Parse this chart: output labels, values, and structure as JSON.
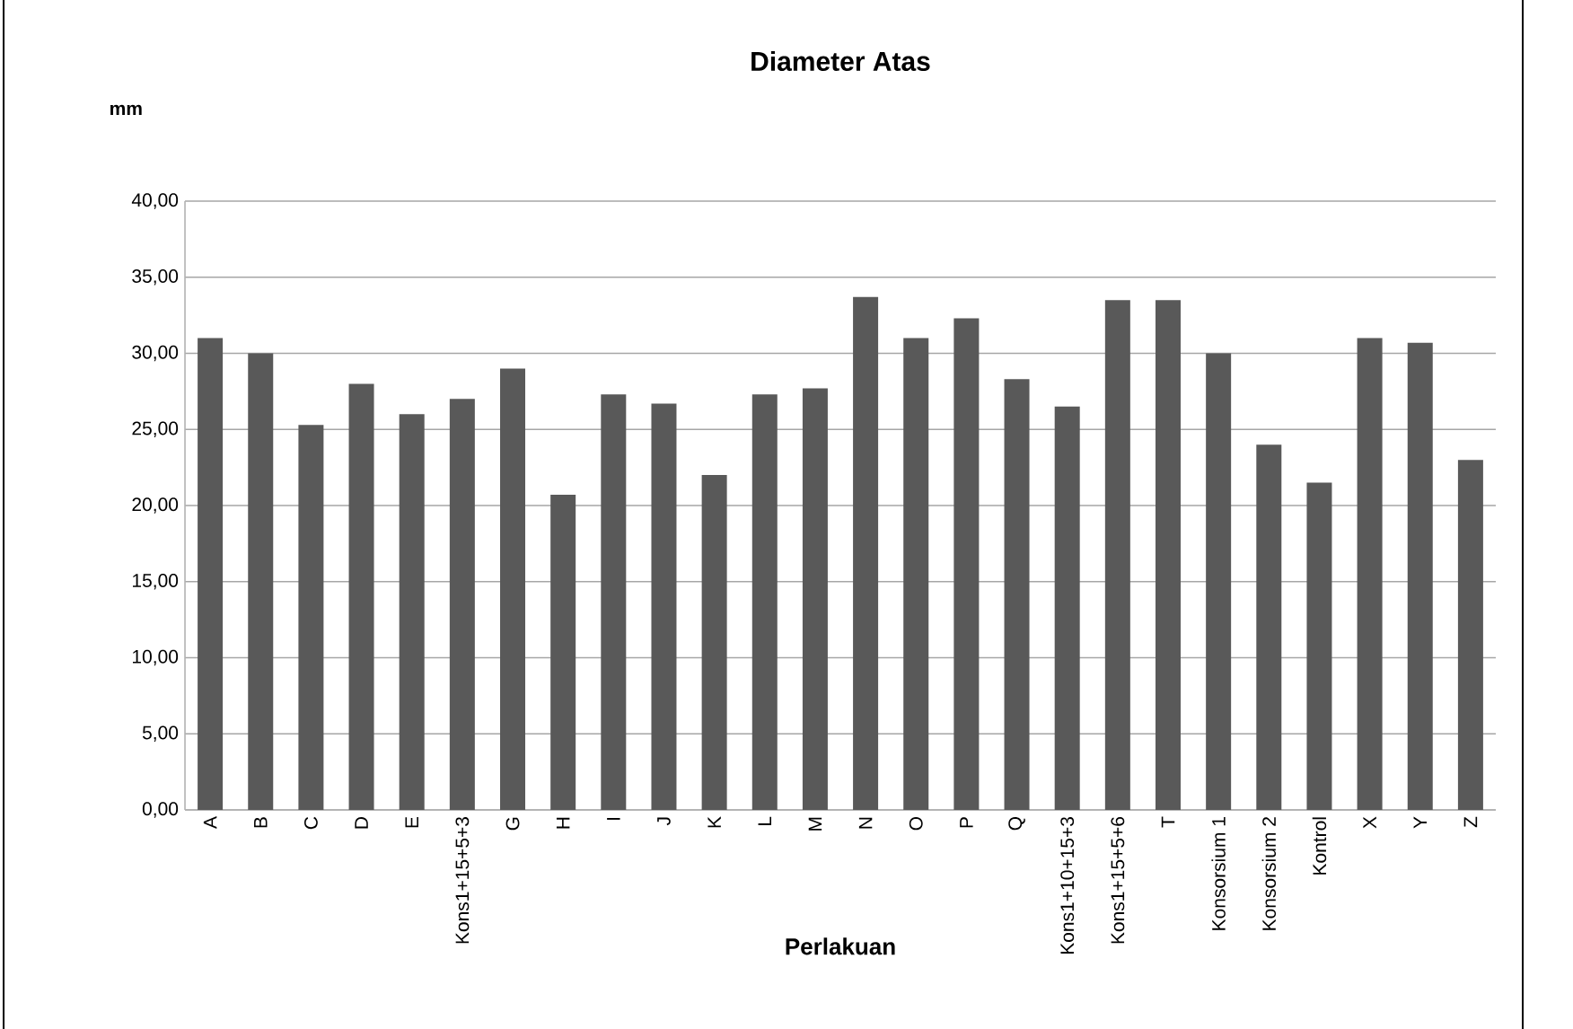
{
  "chart_data": {
    "type": "bar",
    "title": "Diameter Atas",
    "ylabel": "mm",
    "xlabel": "Perlakuan",
    "categories": [
      "A",
      "B",
      "C",
      "D",
      "E",
      "Kons1+15+5+3",
      "G",
      "H",
      "I",
      "J",
      "K",
      "L",
      "M",
      "N",
      "O",
      "P",
      "Q",
      "Kons1+10+15+3",
      "Kons1+15+5+6",
      "T",
      "Konsorsium 1",
      "Konsorsium 2",
      "Kontrol",
      "X",
      "Y",
      "Z"
    ],
    "values": [
      31,
      30,
      25.3,
      28,
      26,
      27,
      29,
      20.7,
      27.3,
      26.7,
      22,
      27.3,
      27.7,
      33.7,
      31,
      32.3,
      28.3,
      26.5,
      33.5,
      33.5,
      30,
      24,
      21.5,
      31,
      30.7,
      23
    ],
    "color": "#595959",
    "ylim": [
      0,
      40
    ],
    "yticks": [
      {
        "value": 0,
        "label": "0,00"
      },
      {
        "value": 5,
        "label": "5,00"
      },
      {
        "value": 10,
        "label": "10,00"
      },
      {
        "value": 15,
        "label": "15,00"
      },
      {
        "value": 20,
        "label": "20,00"
      },
      {
        "value": 25,
        "label": "25,00"
      },
      {
        "value": 30,
        "label": "30,00"
      },
      {
        "value": 35,
        "label": "35,00"
      },
      {
        "value": 40,
        "label": "40,00"
      }
    ],
    "grid": "y"
  }
}
